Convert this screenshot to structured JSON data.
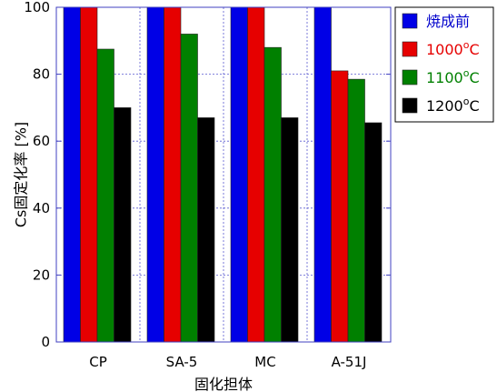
{
  "chart_data": {
    "type": "bar",
    "categories": [
      "CP",
      "SA-5",
      "MC",
      "A-51J"
    ],
    "series": [
      {
        "name": "焼成前",
        "sup": "",
        "suffix": "",
        "color": "#0000e6",
        "values": [
          100,
          100,
          100,
          100
        ]
      },
      {
        "name": "1000",
        "sup": "o",
        "suffix": "C",
        "color": "#e60000",
        "values": [
          100,
          100,
          100,
          81
        ]
      },
      {
        "name": "1100",
        "sup": "o",
        "suffix": "C",
        "color": "#008000",
        "values": [
          87.5,
          92,
          88,
          78.5
        ]
      },
      {
        "name": "1200",
        "sup": "o",
        "suffix": "C",
        "color": "#000000",
        "values": [
          70,
          67,
          67,
          65.5
        ]
      }
    ],
    "legend_text_colors": [
      "#0000cc",
      "#e60000",
      "#008000",
      "#000000"
    ],
    "xlabel": "固化担体",
    "ylabel": "Cs固定化率 [%]",
    "ylim": [
      0,
      100
    ],
    "yticks": [
      0,
      20,
      40,
      60,
      80,
      100
    ],
    "grid": true,
    "frame_color": "#4040c0",
    "legend_position": "top-right"
  }
}
